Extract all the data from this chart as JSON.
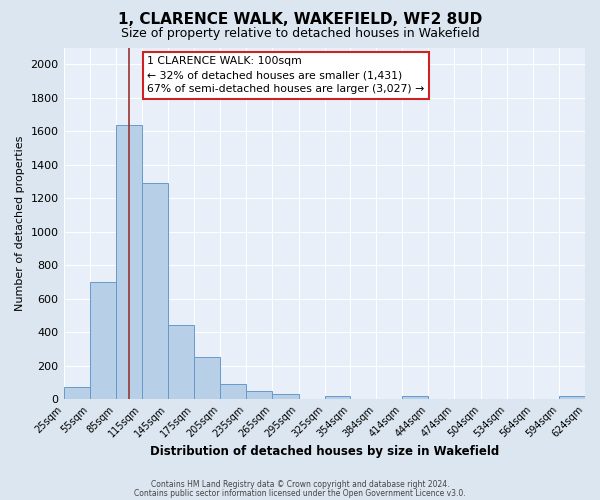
{
  "title": "1, CLARENCE WALK, WAKEFIELD, WF2 8UD",
  "subtitle": "Size of property relative to detached houses in Wakefield",
  "xlabel": "Distribution of detached houses by size in Wakefield",
  "ylabel": "Number of detached properties",
  "footer_line1": "Contains HM Land Registry data © Crown copyright and database right 2024.",
  "footer_line2": "Contains public sector information licensed under the Open Government Licence v3.0.",
  "bar_color": "#b8cfe8",
  "bar_edge_color": "#6699cc",
  "background_color": "#dce6f0",
  "plot_bg_color": "#e8eff8",
  "grid_color": "#ffffff",
  "red_line_x": 100,
  "annotation_title": "1 CLARENCE WALK: 100sqm",
  "annotation_line1": "← 32% of detached houses are smaller (1,431)",
  "annotation_line2": "67% of semi-detached houses are larger (3,027) →",
  "bin_edges": [
    25,
    55,
    85,
    115,
    145,
    175,
    205,
    235,
    265,
    295,
    325,
    354,
    384,
    414,
    444,
    474,
    504,
    534,
    564,
    594,
    624
  ],
  "bar_heights": [
    70,
    700,
    1640,
    1290,
    440,
    250,
    90,
    50,
    30,
    0,
    20,
    0,
    0,
    20,
    0,
    0,
    0,
    0,
    0,
    20
  ],
  "ylim": [
    0,
    2100
  ],
  "yticks": [
    0,
    200,
    400,
    600,
    800,
    1000,
    1200,
    1400,
    1600,
    1800,
    2000
  ]
}
